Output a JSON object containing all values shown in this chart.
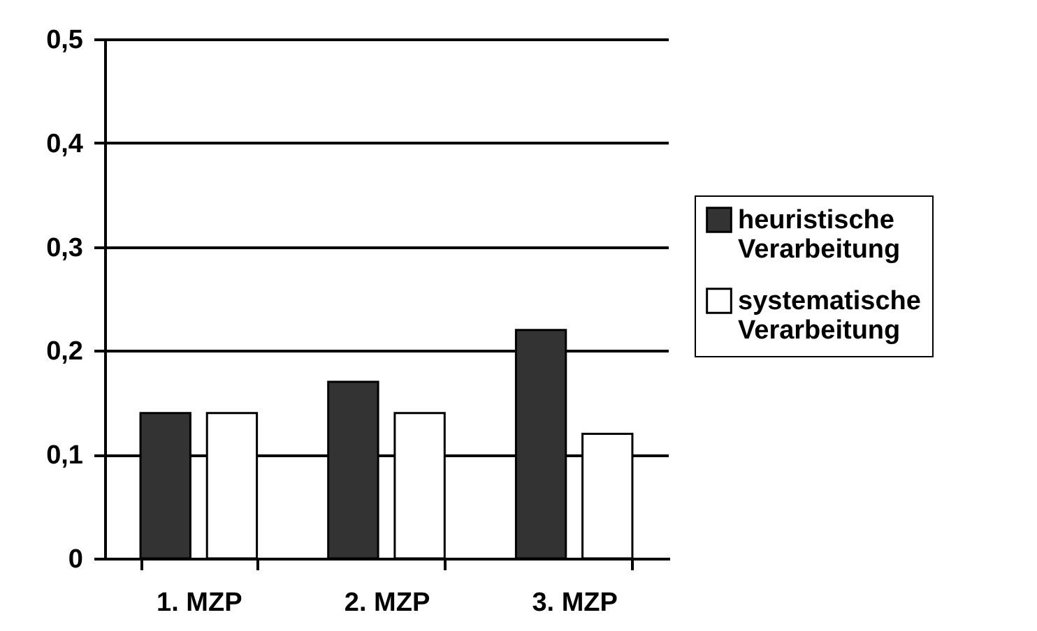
{
  "chart_data": {
    "type": "bar",
    "categories": [
      "1. MZP",
      "2. MZP",
      "3. MZP"
    ],
    "series": [
      {
        "name": "heuristische Verarbeitung",
        "color": "#333333",
        "values": [
          0.14,
          0.17,
          0.22
        ]
      },
      {
        "name": "systematische Verarbeitung",
        "color": "#ffffff",
        "values": [
          0.14,
          0.14,
          0.12
        ]
      }
    ],
    "ylim": [
      0,
      0.5
    ],
    "yticks": [
      {
        "value": 0,
        "label": "0"
      },
      {
        "value": 0.1,
        "label": "0,1"
      },
      {
        "value": 0.2,
        "label": "0,2"
      },
      {
        "value": 0.3,
        "label": "0,3"
      },
      {
        "value": 0.4,
        "label": "0,4"
      },
      {
        "value": 0.5,
        "label": "0,5"
      }
    ],
    "grid": "y",
    "legend": "right"
  }
}
